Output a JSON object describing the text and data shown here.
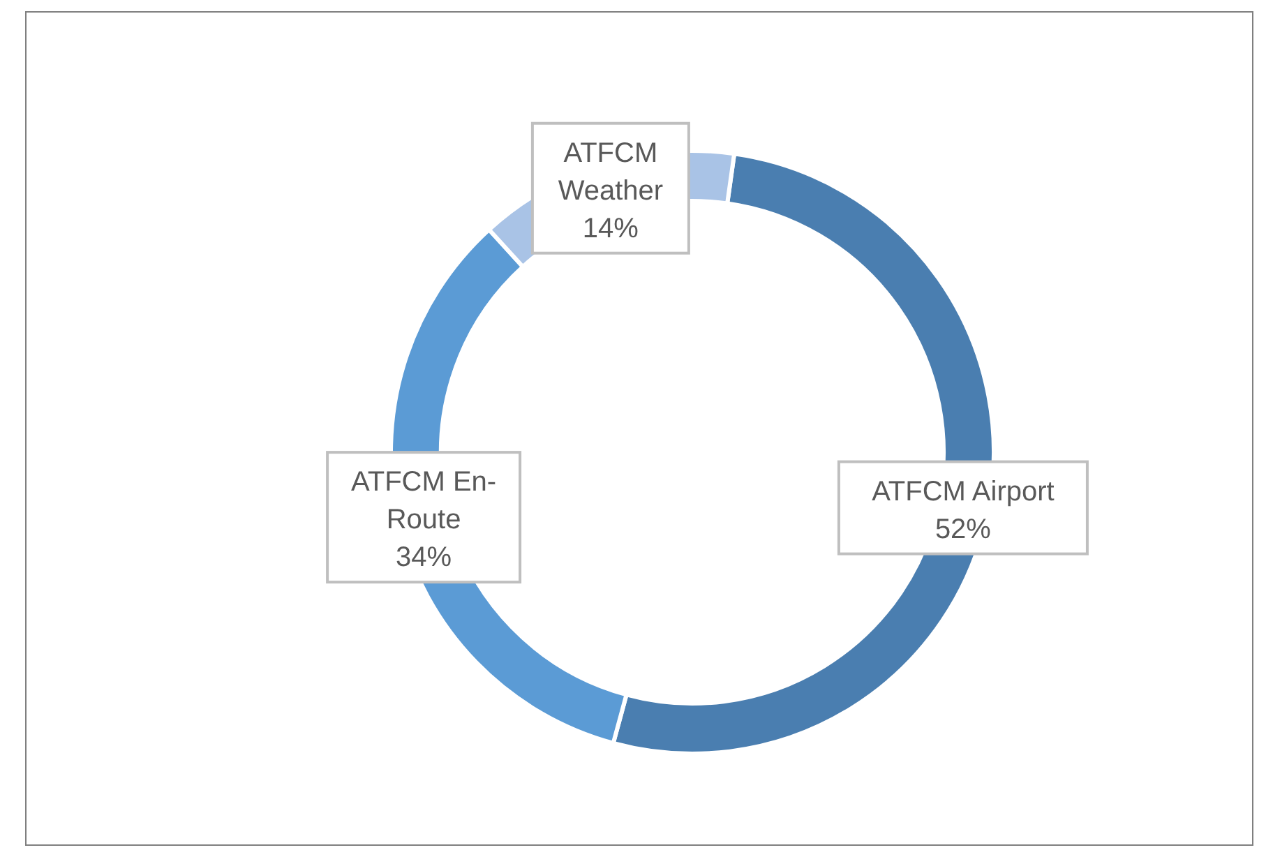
{
  "chart_data": {
    "type": "donut",
    "categories": [
      "ATFCM Airport",
      "ATFCM En-Route",
      "ATFCM Weather"
    ],
    "values": [
      52,
      34,
      14
    ],
    "colors": [
      "#4a7eb0",
      "#5b9bd5",
      "#a9c3e6"
    ],
    "value_labels": [
      "52%",
      "34%",
      "14%"
    ],
    "legend": false
  }
}
